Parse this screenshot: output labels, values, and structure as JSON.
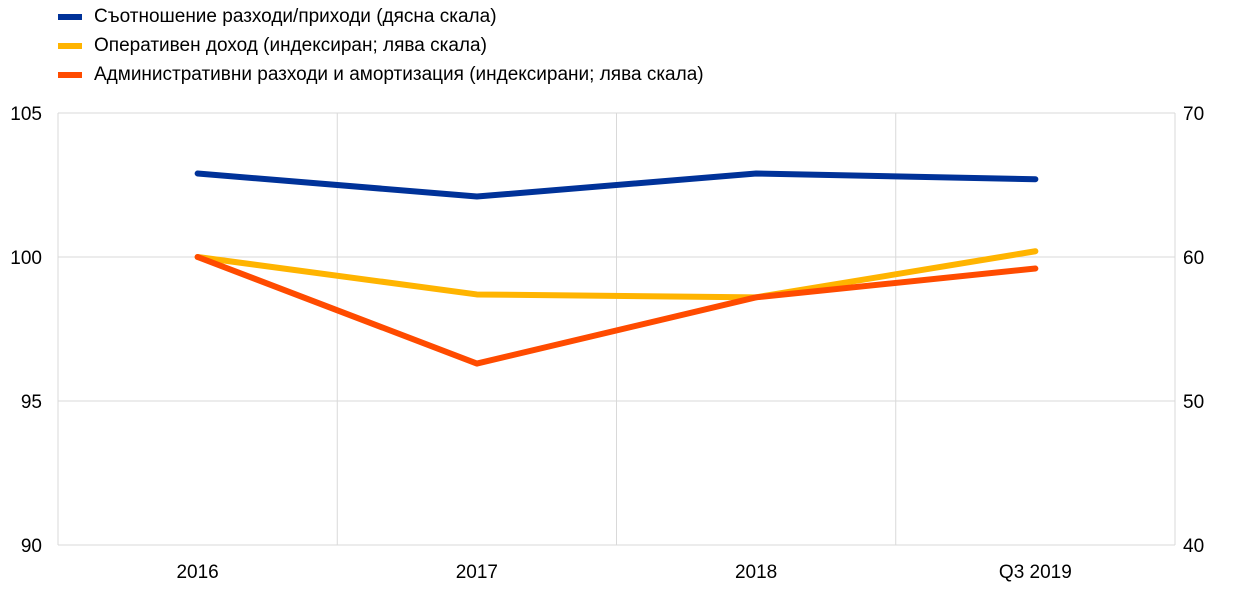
{
  "chart_data": {
    "type": "line",
    "categories": [
      "2016",
      "2017",
      "2018",
      "Q3 2019"
    ],
    "left_axis": {
      "ylim": [
        90,
        105
      ],
      "ticks": [
        "90",
        "95",
        "100",
        "105"
      ]
    },
    "right_axis": {
      "ylim": [
        40,
        70
      ],
      "ticks": [
        "40",
        "50",
        "60",
        "70"
      ]
    },
    "grid": true,
    "legend_position": "top-left",
    "series": [
      {
        "name": "Съотношение разходи/приходи (дясна скала)",
        "axis": "right",
        "color": "#003299",
        "values": [
          65.8,
          64.2,
          65.8,
          65.4
        ]
      },
      {
        "name": "Оперативен доход (индексиран; лява скала)",
        "axis": "left",
        "color": "#FFB400",
        "values": [
          100,
          98.7,
          98.6,
          100.2
        ]
      },
      {
        "name": "Административни разходи и амортизация (индексирани; лява скала)",
        "axis": "left",
        "color": "#FF4B00",
        "values": [
          100,
          96.3,
          98.6,
          99.6
        ]
      }
    ]
  }
}
